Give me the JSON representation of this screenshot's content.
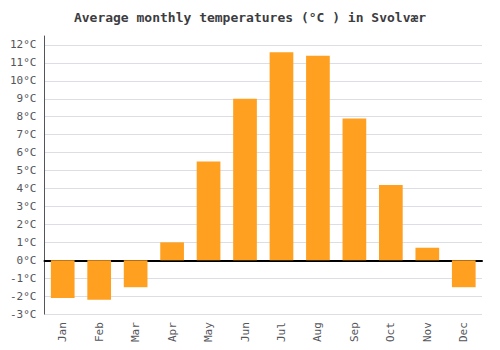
{
  "chart_data": {
    "type": "bar",
    "title": "Average monthly temperatures (°C ) in Svolvær",
    "categories": [
      "Jan",
      "Feb",
      "Mar",
      "Apr",
      "May",
      "Jun",
      "Jul",
      "Aug",
      "Sep",
      "Oct",
      "Nov",
      "Dec"
    ],
    "values": [
      -2.1,
      -2.2,
      -1.5,
      1.0,
      5.5,
      9.0,
      11.6,
      11.4,
      7.9,
      4.2,
      0.7,
      -1.5
    ],
    "color": "#FFA020",
    "ylim": [
      -3,
      12.5
    ],
    "yticks": [
      {
        "value": -3,
        "label": "-3°C"
      },
      {
        "value": -2,
        "label": "-2°C"
      },
      {
        "value": -1,
        "label": "-1°C"
      },
      {
        "value": 0,
        "label": "0°C"
      },
      {
        "value": 1,
        "label": "1°C"
      },
      {
        "value": 2,
        "label": "2°C"
      },
      {
        "value": 3,
        "label": "3°C"
      },
      {
        "value": 4,
        "label": "4°C"
      },
      {
        "value": 5,
        "label": "5°C"
      },
      {
        "value": 6,
        "label": "6°C"
      },
      {
        "value": 7,
        "label": "7°C"
      },
      {
        "value": 8,
        "label": "8°C"
      },
      {
        "value": 9,
        "label": "9°C"
      },
      {
        "value": 10,
        "label": "10°C"
      },
      {
        "value": 11,
        "label": "11°C"
      },
      {
        "value": 12,
        "label": "12°C"
      }
    ],
    "grid": true
  }
}
